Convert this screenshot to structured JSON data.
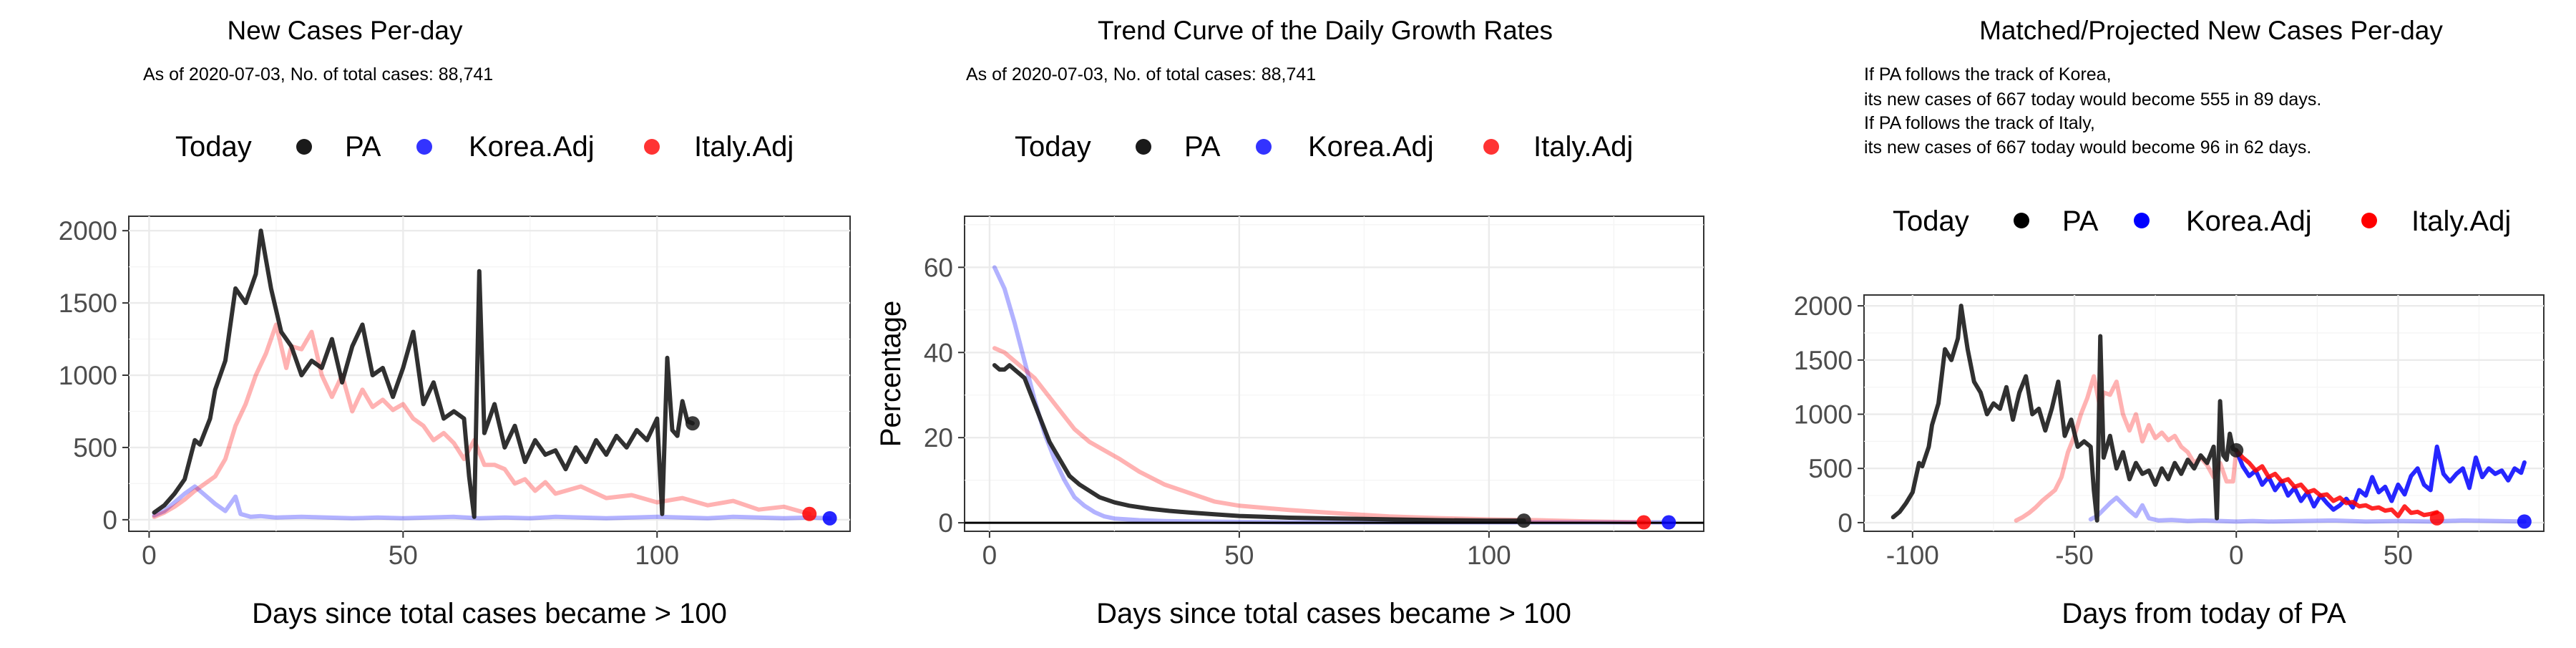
{
  "colors": {
    "PA": "#1a1a1a",
    "Korea.Adj": "#0000ff",
    "Italy.Adj": "#ff0000"
  },
  "legend": {
    "title": "Today",
    "entries": [
      "PA",
      "Korea.Adj",
      "Italy.Adj"
    ]
  },
  "chart_data": [
    {
      "type": "line",
      "title": "New Cases Per-day",
      "subtitle": [
        "As of 2020-07-03, No. of total cases: 88,741"
      ],
      "xlabel": "Days since total cases became > 100",
      "ylabel": "",
      "xlim": [
        -4,
        138
      ],
      "ylim": [
        -80,
        2100
      ],
      "xticks": [
        0,
        50,
        100
      ],
      "yticks": [
        0,
        500,
        1000,
        1500,
        2000
      ],
      "ytick_labels": [
        "0",
        "500",
        "1000",
        "1500",
        "2000"
      ],
      "grid": true,
      "legend_position": "top",
      "series": [
        {
          "name": "Korea.Adj",
          "color": "#0000ff",
          "alpha": 0.3,
          "x": [
            1,
            3,
            5,
            7,
            9,
            11,
            13,
            15,
            17,
            18,
            20,
            22,
            25,
            30,
            35,
            40,
            45,
            50,
            55,
            60,
            65,
            70,
            75,
            80,
            85,
            90,
            95,
            100,
            105,
            110,
            115,
            120,
            125,
            130,
            134
          ],
          "y": [
            30,
            60,
            120,
            180,
            230,
            170,
            110,
            60,
            160,
            40,
            20,
            25,
            15,
            20,
            15,
            10,
            15,
            10,
            15,
            20,
            10,
            15,
            10,
            20,
            15,
            10,
            15,
            20,
            15,
            10,
            20,
            15,
            10,
            15,
            10
          ]
        },
        {
          "name": "Italy.Adj",
          "color": "#ff0000",
          "alpha": 0.3,
          "x": [
            1,
            3,
            5,
            7,
            9,
            11,
            13,
            15,
            17,
            19,
            21,
            23,
            25,
            27,
            28,
            30,
            32,
            34,
            36,
            38,
            40,
            42,
            44,
            46,
            48,
            50,
            52,
            54,
            56,
            58,
            60,
            62,
            64,
            66,
            68,
            70,
            72,
            74,
            76,
            78,
            80,
            85,
            90,
            95,
            100,
            105,
            110,
            115,
            120,
            125,
            130
          ],
          "y": [
            20,
            50,
            90,
            140,
            200,
            250,
            300,
            420,
            650,
            800,
            1000,
            1150,
            1350,
            1050,
            1200,
            1180,
            1300,
            1000,
            850,
            1000,
            750,
            900,
            780,
            830,
            760,
            800,
            700,
            650,
            550,
            600,
            530,
            420,
            550,
            380,
            380,
            350,
            250,
            280,
            200,
            260,
            180,
            230,
            150,
            170,
            120,
            150,
            100,
            130,
            70,
            90,
            40
          ]
        },
        {
          "name": "PA",
          "color": "#1a1a1a",
          "alpha": 0.9,
          "x": [
            1,
            3,
            5,
            7,
            9,
            10,
            12,
            13,
            15,
            17,
            19,
            21,
            22,
            23,
            24,
            26,
            28,
            30,
            32,
            34,
            36,
            38,
            40,
            42,
            44,
            46,
            48,
            50,
            52,
            54,
            56,
            58,
            60,
            62,
            63,
            64,
            65,
            66,
            68,
            70,
            72,
            74,
            76,
            78,
            80,
            82,
            84,
            86,
            88,
            90,
            92,
            94,
            96,
            98,
            100,
            101,
            102,
            103,
            104,
            105,
            106,
            107
          ],
          "y": [
            50,
            100,
            180,
            280,
            550,
            520,
            700,
            900,
            1100,
            1600,
            1500,
            1700,
            2000,
            1800,
            1600,
            1300,
            1200,
            1000,
            1100,
            1050,
            1250,
            950,
            1200,
            1350,
            1000,
            1050,
            850,
            1050,
            1300,
            800,
            950,
            700,
            750,
            700,
            300,
            20,
            1720,
            600,
            800,
            500,
            650,
            400,
            550,
            450,
            480,
            350,
            500,
            400,
            550,
            450,
            580,
            500,
            620,
            550,
            700,
            40,
            1120,
            620,
            580,
            820,
            680,
            667
          ]
        }
      ],
      "today_points": [
        {
          "series": "PA",
          "x": 107,
          "y": 667
        },
        {
          "series": "Korea.Adj",
          "x": 134,
          "y": 10
        },
        {
          "series": "Italy.Adj",
          "x": 130,
          "y": 40
        }
      ]
    },
    {
      "type": "line",
      "title": "Trend Curve of the Daily Growth Rates",
      "subtitle": [
        "As of 2020-07-03, No. of total cases: 88,741"
      ],
      "xlabel": "Days since total cases became > 100",
      "ylabel": "Percentage",
      "xlim": [
        -5,
        143
      ],
      "ylim": [
        -2,
        72
      ],
      "xticks": [
        0,
        50,
        100
      ],
      "yticks": [
        0,
        20,
        40,
        60
      ],
      "ytick_labels": [
        "0",
        "20",
        "40",
        "60"
      ],
      "hline": 0,
      "grid": true,
      "legend_position": "top",
      "series": [
        {
          "name": "Korea.Adj",
          "color": "#0000ff",
          "alpha": 0.3,
          "x": [
            1,
            3,
            5,
            7,
            9,
            11,
            13,
            15,
            17,
            19,
            21,
            23,
            25,
            30,
            35,
            40,
            50,
            60,
            80,
            100,
            120,
            135
          ],
          "y": [
            60,
            55,
            47,
            38,
            29,
            21,
            15,
            10,
            6,
            4,
            2.5,
            1.5,
            1,
            0.6,
            0.4,
            0.3,
            0.2,
            0.1,
            0.1,
            0.1,
            0.1,
            0.1
          ]
        },
        {
          "name": "Italy.Adj",
          "color": "#ff0000",
          "alpha": 0.3,
          "x": [
            1,
            3,
            5,
            7,
            9,
            11,
            13,
            15,
            17,
            20,
            23,
            26,
            30,
            35,
            40,
            45,
            50,
            60,
            70,
            80,
            90,
            100,
            110,
            120,
            131
          ],
          "y": [
            41,
            40,
            38,
            36,
            34,
            31,
            28,
            25,
            22,
            19,
            17,
            15,
            12,
            9,
            7,
            5,
            4,
            3,
            2.2,
            1.5,
            1.1,
            0.8,
            0.6,
            0.3,
            0.1
          ]
        },
        {
          "name": "PA",
          "color": "#1a1a1a",
          "alpha": 0.9,
          "x": [
            1,
            2,
            3,
            4,
            5,
            6,
            7,
            8,
            9,
            10,
            11,
            12,
            13,
            14,
            15,
            16,
            18,
            20,
            22,
            25,
            28,
            32,
            36,
            40,
            45,
            50,
            55,
            60,
            70,
            80,
            90,
            100,
            107
          ],
          "y": [
            37,
            36,
            36,
            37,
            36,
            35,
            34,
            31,
            28,
            25,
            22,
            19,
            17,
            15,
            13,
            11,
            9,
            7.5,
            6,
            4.8,
            4,
            3.3,
            2.8,
            2.4,
            2,
            1.6,
            1.4,
            1.2,
            1,
            0.8,
            0.6,
            0.5,
            0.5
          ]
        }
      ],
      "today_points": [
        {
          "series": "PA",
          "x": 107,
          "y": 0.5
        },
        {
          "series": "Korea.Adj",
          "x": 136,
          "y": 0.1
        },
        {
          "series": "Italy.Adj",
          "x": 131,
          "y": 0.1
        }
      ]
    },
    {
      "type": "line",
      "title": "Matched/Projected New Cases Per-day",
      "subtitle": [
        "If PA follows the track of Korea,",
        "its new cases of 667 today would become 555 in 89 days.",
        "If PA follows the track of Italy,",
        "its new cases of 667 today would become 96 in 62 days."
      ],
      "xlabel": "Days from today of PA",
      "ylabel": "",
      "xlim": [
        -115,
        95
      ],
      "ylim": [
        -80,
        2100
      ],
      "xticks": [
        -100,
        -50,
        0,
        50
      ],
      "yticks": [
        0,
        500,
        1000,
        1500,
        2000
      ],
      "ytick_labels": [
        "0",
        "500",
        "1000",
        "1500",
        "2000"
      ],
      "grid": true,
      "legend_position": "top",
      "series": [
        {
          "name": "Korea.Adj",
          "color": "#0000ff",
          "alpha": 0.3,
          "x": [
            -45,
            -43,
            -41,
            -39,
            -37,
            -35,
            -33,
            -31,
            -29,
            -27,
            -24,
            -20,
            -15,
            -10,
            -5,
            0,
            5,
            10,
            20,
            30,
            40,
            50,
            60,
            70,
            80,
            89
          ],
          "y": [
            30,
            60,
            120,
            180,
            230,
            170,
            110,
            60,
            160,
            40,
            20,
            25,
            15,
            20,
            15,
            10,
            15,
            10,
            15,
            20,
            10,
            15,
            10,
            20,
            15,
            10
          ]
        },
        {
          "name": "Korea.Adj projection",
          "color": "#0000ff",
          "alpha": 0.85,
          "x": [
            0,
            2,
            4,
            6,
            8,
            10,
            12,
            14,
            16,
            18,
            20,
            22,
            24,
            26,
            28,
            30,
            32,
            34,
            36,
            38,
            40,
            42,
            44,
            46,
            48,
            50,
            52,
            54,
            56,
            58,
            60,
            62,
            64,
            66,
            68,
            70,
            72,
            74,
            76,
            78,
            80,
            82,
            84,
            86,
            88,
            89
          ],
          "y": [
            667,
            520,
            430,
            480,
            350,
            420,
            300,
            380,
            250,
            320,
            200,
            280,
            150,
            250,
            180,
            120,
            160,
            220,
            140,
            300,
            250,
            420,
            280,
            330,
            200,
            350,
            260,
            430,
            500,
            350,
            300,
            700,
            450,
            380,
            450,
            500,
            320,
            600,
            420,
            500,
            450,
            480,
            390,
            500,
            460,
            555
          ]
        },
        {
          "name": "Italy.Adj",
          "color": "#ff0000",
          "alpha": 0.3,
          "x": [
            -68,
            -66,
            -64,
            -62,
            -60,
            -58,
            -56,
            -54,
            -52,
            -50,
            -48,
            -46,
            -44,
            -42,
            -41,
            -39,
            -37,
            -35,
            -33,
            -31,
            -29,
            -27,
            -25,
            -23,
            -21,
            -19,
            -17,
            -15,
            -13,
            -11,
            -9,
            -7,
            -5,
            -3,
            -1,
            0
          ],
          "y": [
            20,
            50,
            90,
            140,
            200,
            250,
            300,
            420,
            650,
            800,
            1000,
            1150,
            1350,
            1050,
            1200,
            1180,
            1300,
            1000,
            850,
            1000,
            750,
            900,
            780,
            830,
            760,
            800,
            700,
            650,
            550,
            600,
            530,
            420,
            550,
            380,
            380,
            667
          ]
        },
        {
          "name": "Italy.Adj projection",
          "color": "#ff0000",
          "alpha": 0.85,
          "x": [
            0,
            2,
            4,
            6,
            8,
            10,
            12,
            14,
            16,
            18,
            20,
            22,
            24,
            26,
            28,
            30,
            32,
            34,
            36,
            38,
            40,
            42,
            44,
            46,
            48,
            50,
            52,
            54,
            56,
            58,
            60,
            62
          ],
          "y": [
            667,
            600,
            550,
            480,
            520,
            420,
            450,
            380,
            400,
            330,
            350,
            280,
            300,
            250,
            260,
            200,
            230,
            180,
            190,
            150,
            160,
            130,
            140,
            110,
            120,
            60,
            150,
            90,
            100,
            70,
            80,
            96
          ]
        },
        {
          "name": "PA",
          "color": "#1a1a1a",
          "alpha": 0.9,
          "x": [
            -106,
            -104,
            -102,
            -100,
            -98,
            -97,
            -95,
            -94,
            -92,
            -90,
            -88,
            -86,
            -85,
            -84,
            -83,
            -81,
            -79,
            -77,
            -75,
            -73,
            -71,
            -69,
            -67,
            -65,
            -63,
            -61,
            -59,
            -57,
            -55,
            -53,
            -51,
            -49,
            -47,
            -45,
            -44,
            -43,
            -42,
            -41,
            -39,
            -37,
            -35,
            -33,
            -31,
            -29,
            -27,
            -25,
            -23,
            -21,
            -19,
            -17,
            -15,
            -13,
            -11,
            -9,
            -7,
            -6,
            -5,
            -4,
            -3,
            -2,
            -1,
            0
          ],
          "y": [
            50,
            100,
            180,
            280,
            550,
            520,
            700,
            900,
            1100,
            1600,
            1500,
            1700,
            2000,
            1800,
            1600,
            1300,
            1200,
            1000,
            1100,
            1050,
            1250,
            950,
            1200,
            1350,
            1000,
            1050,
            850,
            1050,
            1300,
            800,
            950,
            700,
            750,
            700,
            300,
            20,
            1720,
            600,
            800,
            500,
            650,
            400,
            550,
            450,
            480,
            350,
            500,
            400,
            550,
            450,
            580,
            500,
            620,
            550,
            700,
            40,
            1120,
            620,
            580,
            820,
            680,
            667
          ]
        }
      ],
      "today_points": [
        {
          "series": "PA",
          "x": 0,
          "y": 667
        },
        {
          "series": "Korea.Adj",
          "x": 89,
          "y": 10
        },
        {
          "series": "Italy.Adj",
          "x": 62,
          "y": 40
        }
      ]
    }
  ]
}
